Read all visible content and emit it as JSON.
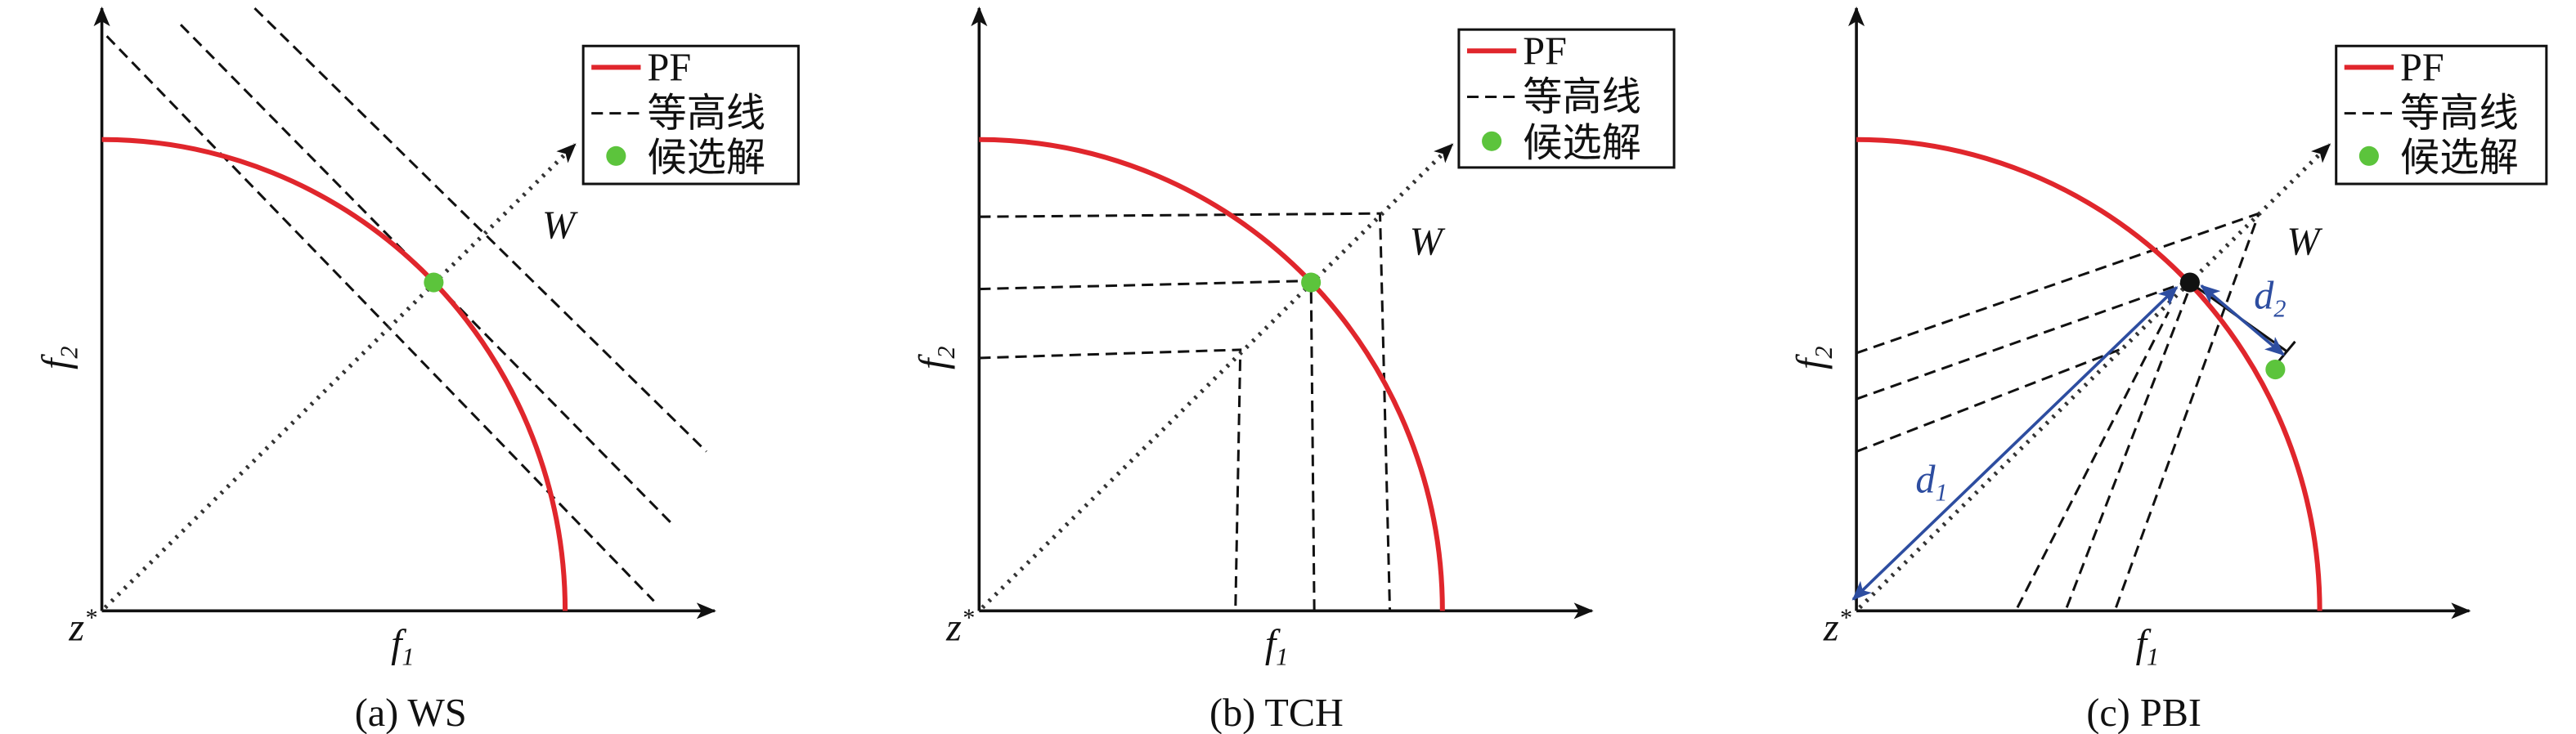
{
  "panels": [
    {
      "caption": "(a) WS",
      "legend": [
        "PF",
        "等高线",
        "候选解"
      ],
      "x_label": {
        "base": "f",
        "sub": "1"
      },
      "y_label": {
        "base": "f",
        "sub": "2"
      },
      "origin": {
        "base": "z",
        "sup": "*"
      },
      "w_label": "W"
    },
    {
      "caption": "(b) TCH",
      "legend": [
        "PF",
        "等高线",
        "候选解"
      ],
      "x_label": {
        "base": "f",
        "sub": "1"
      },
      "y_label": {
        "base": "f",
        "sub": "2"
      },
      "origin": {
        "base": "z",
        "sup": "*"
      },
      "w_label": "W"
    },
    {
      "caption": "(c) PBI",
      "legend": [
        "PF",
        "等高线",
        "候选解"
      ],
      "x_label": {
        "base": "f",
        "sub": "1"
      },
      "y_label": {
        "base": "f",
        "sub": "2"
      },
      "origin": {
        "base": "z",
        "sup": "*"
      },
      "w_label": "W",
      "d1": {
        "base": "d",
        "sub": "1"
      },
      "d2": {
        "base": "d",
        "sub": "2"
      }
    }
  ]
}
